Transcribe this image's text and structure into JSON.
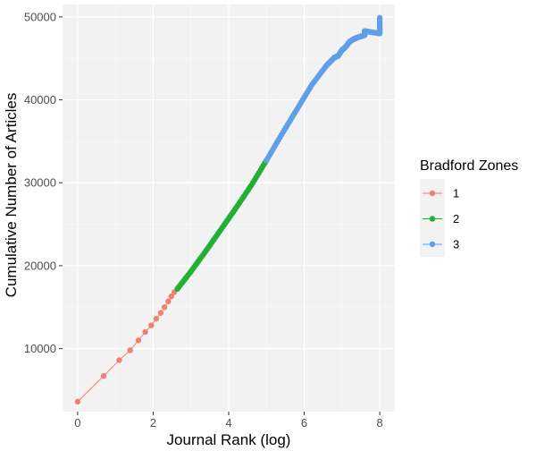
{
  "chart_data": {
    "type": "line",
    "xlabel": "Journal Rank (log)",
    "ylabel": "Cumulative Number of Articles",
    "xlim": [
      -0.4,
      8.4
    ],
    "ylim": [
      2400,
      51500
    ],
    "x_ticks": [
      0,
      2,
      4,
      6,
      8
    ],
    "x_tick_labels": [
      "0",
      "2",
      "4",
      "6",
      "8"
    ],
    "y_ticks": [
      10000,
      20000,
      30000,
      40000,
      50000
    ],
    "y_tick_labels": [
      "10000",
      "20000",
      "30000",
      "40000",
      "50000"
    ],
    "grid": true,
    "panel_background": "#f2f2f2",
    "legend": {
      "title": "Bradford Zones",
      "position": "right"
    },
    "series": [
      {
        "name": "1",
        "color": "#f0816f",
        "points": [
          [
            0.0,
            3600
          ],
          [
            0.69,
            6700
          ],
          [
            1.1,
            8600
          ],
          [
            1.39,
            9800
          ],
          [
            1.61,
            11000
          ],
          [
            1.79,
            12000
          ],
          [
            1.95,
            12800
          ],
          [
            2.08,
            13600
          ],
          [
            2.2,
            14300
          ],
          [
            2.3,
            15000
          ],
          [
            2.4,
            15700
          ],
          [
            2.48,
            16300
          ],
          [
            2.56,
            16800
          ],
          [
            2.64,
            17200
          ]
        ]
      },
      {
        "name": "2",
        "color": "#21b034",
        "points": [
          [
            2.64,
            17200
          ],
          [
            3.0,
            19300
          ],
          [
            3.4,
            21800
          ],
          [
            3.8,
            24400
          ],
          [
            4.2,
            27000
          ],
          [
            4.6,
            29700
          ],
          [
            5.0,
            32700
          ]
        ]
      },
      {
        "name": "3",
        "color": "#5f9fe8",
        "points": [
          [
            5.0,
            32700
          ],
          [
            5.4,
            35800
          ],
          [
            5.8,
            38800
          ],
          [
            6.2,
            41800
          ],
          [
            6.6,
            44200
          ],
          [
            6.8,
            45100
          ],
          [
            6.9,
            45300
          ],
          [
            7.0,
            46000
          ],
          [
            7.1,
            46400
          ],
          [
            7.2,
            47000
          ],
          [
            7.3,
            47300
          ],
          [
            7.4,
            47500
          ],
          [
            7.6,
            47800
          ],
          [
            7.6,
            48300
          ],
          [
            8.0,
            48000
          ],
          [
            8.0,
            49900
          ]
        ]
      }
    ]
  }
}
